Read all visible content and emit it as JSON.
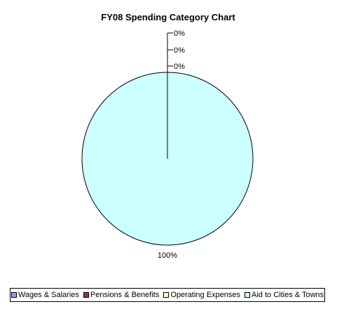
{
  "chart_data": {
    "type": "pie",
    "title": "FY08 Spending Category Chart",
    "categories": [
      "Wages & Salaries",
      "Pensions & Benefits",
      "Operating Expenses",
      "Aid to Cities & Towns"
    ],
    "values": [
      0,
      0,
      0,
      100
    ],
    "labels": [
      "0%",
      "0%",
      "0%",
      "100%"
    ],
    "colors": [
      "#9999ff",
      "#993366",
      "#ffffcc",
      "#ccffff"
    ],
    "legend_position": "bottom"
  }
}
